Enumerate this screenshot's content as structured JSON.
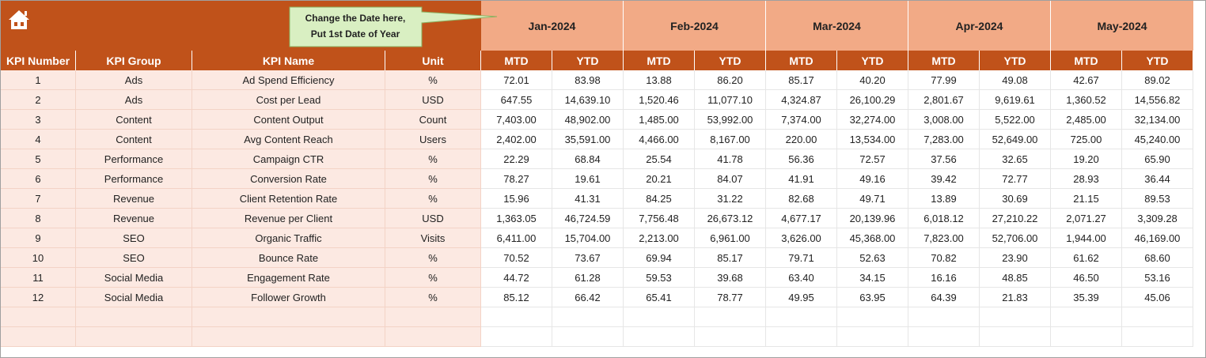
{
  "header": {
    "callout": [
      "Change the Date here,",
      "Put 1st Date of Year"
    ],
    "months": [
      "Jan-2024",
      "Feb-2024",
      "Mar-2024",
      "Apr-2024",
      "May-2024"
    ]
  },
  "table": {
    "columns": [
      "KPI Number",
      "KPI Group",
      "KPI Name",
      "Unit",
      "MTD",
      "YTD",
      "MTD",
      "YTD",
      "MTD",
      "YTD",
      "MTD",
      "YTD",
      "MTD",
      "YTD"
    ],
    "rows": [
      [
        "1",
        "Ads",
        "Ad Spend Efficiency",
        "%",
        "72.01",
        "83.98",
        "13.88",
        "86.20",
        "85.17",
        "40.20",
        "77.99",
        "49.08",
        "42.67",
        "89.02"
      ],
      [
        "2",
        "Ads",
        "Cost per Lead",
        "USD",
        "647.55",
        "14,639.10",
        "1,520.46",
        "11,077.10",
        "4,324.87",
        "26,100.29",
        "2,801.67",
        "9,619.61",
        "1,360.52",
        "14,556.82"
      ],
      [
        "3",
        "Content",
        "Content Output",
        "Count",
        "7,403.00",
        "48,902.00",
        "1,485.00",
        "53,992.00",
        "7,374.00",
        "32,274.00",
        "3,008.00",
        "5,522.00",
        "2,485.00",
        "32,134.00"
      ],
      [
        "4",
        "Content",
        "Avg Content Reach",
        "Users",
        "2,402.00",
        "35,591.00",
        "4,466.00",
        "8,167.00",
        "220.00",
        "13,534.00",
        "7,283.00",
        "52,649.00",
        "725.00",
        "45,240.00"
      ],
      [
        "5",
        "Performance",
        "Campaign CTR",
        "%",
        "22.29",
        "68.84",
        "25.54",
        "41.78",
        "56.36",
        "72.57",
        "37.56",
        "32.65",
        "19.20",
        "65.90"
      ],
      [
        "6",
        "Performance",
        "Conversion Rate",
        "%",
        "78.27",
        "19.61",
        "20.21",
        "84.07",
        "41.91",
        "49.16",
        "39.42",
        "72.77",
        "28.93",
        "36.44"
      ],
      [
        "7",
        "Revenue",
        "Client Retention Rate",
        "%",
        "15.96",
        "41.31",
        "84.25",
        "31.22",
        "82.68",
        "49.71",
        "13.89",
        "30.69",
        "21.15",
        "89.53"
      ],
      [
        "8",
        "Revenue",
        "Revenue per Client",
        "USD",
        "1,363.05",
        "46,724.59",
        "7,756.48",
        "26,673.12",
        "4,677.17",
        "20,139.96",
        "6,018.12",
        "27,210.22",
        "2,071.27",
        "3,309.28"
      ],
      [
        "9",
        "SEO",
        "Organic Traffic",
        "Visits",
        "6,411.00",
        "15,704.00",
        "2,213.00",
        "6,961.00",
        "3,626.00",
        "45,368.00",
        "7,823.00",
        "52,706.00",
        "1,944.00",
        "46,169.00"
      ],
      [
        "10",
        "SEO",
        "Bounce Rate",
        "%",
        "70.52",
        "73.67",
        "69.94",
        "85.17",
        "79.71",
        "52.63",
        "70.82",
        "23.90",
        "61.62",
        "68.60"
      ],
      [
        "11",
        "Social Media",
        "Engagement Rate",
        "%",
        "44.72",
        "61.28",
        "59.53",
        "39.68",
        "63.40",
        "34.15",
        "16.16",
        "48.85",
        "46.50",
        "53.16"
      ],
      [
        "12",
        "Social Media",
        "Follower Growth",
        "%",
        "85.12",
        "66.42",
        "65.41",
        "78.77",
        "49.95",
        "63.95",
        "64.39",
        "21.83",
        "35.39",
        "45.06"
      ]
    ]
  }
}
